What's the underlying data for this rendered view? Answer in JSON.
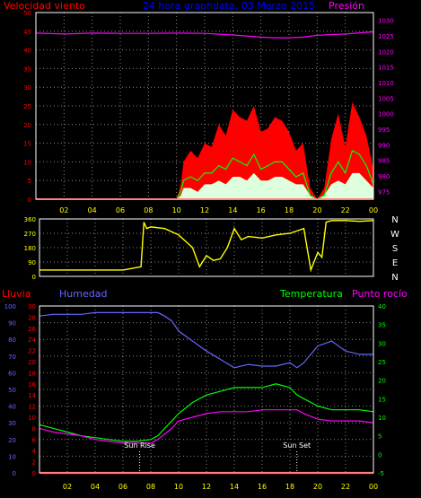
{
  "header": {
    "left_label": "Velocidad viento",
    "center_label": "24 hora graphdata, 03 Marzo 2015",
    "right_label": "Presión"
  },
  "bottom_header": {
    "rain_label": "Lluvia",
    "humidity_label": "Humedad",
    "temp_label": "Temperatura",
    "dew_label": "Punto rocío"
  },
  "colors": {
    "background": "#000000",
    "grid": "#888888",
    "axis_left_top": "#ff0000",
    "axis_right_top": "#ff00ff",
    "wind_gust": "#ff0000",
    "wind_avg": "#00ff00",
    "wind_low": "#ddffdd",
    "wind_dir": "#ffff00",
    "rain": "#ff0000",
    "humidity": "#6666ff",
    "temperature": "#00ff00",
    "dew_point": "#ff00ff",
    "hour_label": "#ffff00",
    "compass_label": "#ffffff"
  },
  "chart_data": [
    {
      "type": "area",
      "title": "24 hora graphdata, 03 Marzo 2015",
      "x_ticks": [
        "02",
        "04",
        "06",
        "08",
        "10",
        "12",
        "14",
        "16",
        "18",
        "20",
        "22",
        "00"
      ],
      "y_left": {
        "label": "Velocidad viento",
        "ticks": [
          0,
          5,
          10,
          15,
          20,
          25,
          30,
          35,
          40,
          45,
          50
        ],
        "ylim": [
          0,
          50
        ]
      },
      "y_right": {
        "label": "Presión",
        "ticks": [
          975,
          980,
          985,
          990,
          995,
          1000,
          1005,
          1010,
          1015,
          1020,
          1025,
          1030
        ],
        "ylim": [
          972.5,
          1032.5
        ]
      },
      "x_hours": [
        0,
        2,
        4,
        6,
        8,
        10,
        10.3,
        10.5,
        11,
        11.5,
        12,
        12.5,
        13,
        13.5,
        14,
        14.5,
        15,
        15.5,
        16,
        16.5,
        17,
        17.5,
        18,
        18.5,
        19,
        19.5,
        20,
        20.5,
        21,
        21.5,
        22,
        22.5,
        23,
        23.5,
        24
      ],
      "series": [
        {
          "name": "Velocidad viento",
          "kind": "gust",
          "values": [
            0,
            0,
            0,
            0,
            0,
            0,
            4,
            10,
            13,
            11,
            15,
            14,
            20,
            17,
            24,
            22,
            21,
            25,
            18,
            19,
            22,
            21,
            18,
            13,
            15,
            3,
            0,
            3,
            16,
            23,
            14,
            26,
            22,
            17,
            8
          ]
        },
        {
          "name": "Velocidad viento",
          "kind": "average",
          "values": [
            0,
            0,
            0,
            0,
            0,
            0,
            2,
            5,
            6,
            5,
            7,
            7,
            9,
            8,
            11,
            10,
            9,
            12,
            8,
            9,
            10,
            10,
            8,
            6,
            7,
            1,
            0,
            1,
            7,
            10,
            7,
            13,
            12,
            9,
            4
          ]
        },
        {
          "name": "Velocidad viento",
          "kind": "low",
          "values": [
            0,
            0,
            0,
            0,
            0,
            0,
            1,
            3,
            3,
            2,
            4,
            4,
            5,
            4,
            6,
            6,
            5,
            7,
            5,
            5,
            6,
            6,
            5,
            4,
            4,
            1,
            0,
            1,
            4,
            5,
            4,
            7,
            7,
            5,
            3
          ]
        },
        {
          "name": "Presión",
          "kind": "pressure",
          "x": [
            0,
            2,
            4,
            6,
            8,
            10,
            12,
            14,
            16,
            17,
            18,
            19,
            20,
            22,
            24
          ],
          "values": [
            1025.9,
            1025.6,
            1025.9,
            1025.8,
            1025.8,
            1025.9,
            1025.8,
            1025.3,
            1024.6,
            1024.4,
            1024.4,
            1024.6,
            1025.2,
            1025.6,
            1026.3
          ]
        }
      ]
    },
    {
      "type": "line",
      "x_ticks": [
        "02",
        "04",
        "06",
        "08",
        "10",
        "12",
        "14",
        "16",
        "18",
        "20",
        "22",
        "00"
      ],
      "y_left": {
        "ticks": [
          0,
          90,
          180,
          270,
          360
        ],
        "ylim": [
          0,
          360
        ]
      },
      "y_right_labels": [
        "N",
        "W",
        "S",
        "E",
        "N"
      ],
      "series": [
        {
          "name": "Dirección viento",
          "x": [
            0,
            2,
            4,
            6,
            7.3,
            7.5,
            7.7,
            8,
            9,
            10,
            11,
            11.5,
            12,
            12.5,
            13,
            13.5,
            14,
            14.5,
            15,
            16,
            17,
            18,
            19,
            19.5,
            20,
            20.3,
            20.6,
            21,
            22,
            23,
            24
          ],
          "values": [
            40,
            40,
            40,
            40,
            60,
            340,
            300,
            310,
            300,
            260,
            180,
            60,
            130,
            100,
            110,
            180,
            300,
            230,
            250,
            240,
            260,
            270,
            300,
            40,
            150,
            120,
            340,
            350,
            350,
            345,
            350
          ]
        }
      ]
    },
    {
      "type": "line",
      "x_ticks": [
        "02",
        "04",
        "06",
        "08",
        "10",
        "12",
        "14",
        "16",
        "18",
        "20",
        "22",
        "00"
      ],
      "y_rain": {
        "label": "Lluvia",
        "ticks": [
          0,
          10,
          20,
          30,
          40,
          50,
          60,
          70,
          80,
          90,
          100
        ],
        "ylim": [
          0,
          100
        ]
      },
      "y_humidity": {
        "label": "Humedad",
        "ticks": [
          0,
          2,
          4,
          6,
          8,
          10,
          12,
          14,
          16,
          18,
          20,
          22,
          24,
          26,
          28,
          30
        ],
        "ylim": [
          0,
          30
        ]
      },
      "y_right": {
        "label": "Temperatura",
        "ticks": [
          -5,
          0,
          5,
          10,
          15,
          20,
          25,
          30,
          35,
          40
        ],
        "ylim": [
          -5,
          40
        ]
      },
      "annotations": [
        {
          "text": "Sun Rise",
          "x": 7.2
        },
        {
          "text": "Sun Set",
          "x": 18.5
        }
      ],
      "x": [
        0,
        1,
        2,
        3,
        4,
        5,
        6,
        7,
        8,
        8.5,
        9,
        9.5,
        10,
        11,
        12,
        13,
        14,
        15,
        16,
        17,
        18,
        18.5,
        19,
        20,
        21,
        22,
        23,
        24
      ],
      "series": [
        {
          "name": "Lluvia",
          "values": [
            0,
            0,
            0,
            0,
            0,
            0,
            0,
            0,
            0,
            0,
            0,
            0,
            0,
            0,
            0,
            0,
            0,
            0,
            0,
            0,
            0,
            0,
            0,
            0,
            0,
            0,
            0,
            0
          ]
        },
        {
          "name": "Humedad",
          "values": [
            94,
            95,
            95,
            95,
            96,
            96,
            96,
            96,
            96,
            96,
            94,
            91,
            85,
            79,
            73,
            68,
            63,
            65,
            64,
            64,
            66,
            63,
            66,
            76,
            79,
            73,
            71,
            71
          ]
        },
        {
          "name": "Temperatura",
          "values": [
            8,
            7,
            6,
            5,
            4.5,
            4,
            3.5,
            3.5,
            4,
            5,
            7,
            9,
            11,
            14,
            16,
            17,
            18,
            18,
            18,
            19,
            18,
            16,
            15,
            13,
            12,
            12,
            12,
            11.5
          ]
        },
        {
          "name": "Punto rocío",
          "values": [
            7,
            6,
            5.5,
            5,
            4,
            3.5,
            3,
            3,
            3,
            4,
            5.5,
            7,
            9,
            10,
            11,
            11.5,
            11.5,
            11.5,
            12,
            12,
            12,
            12,
            11,
            9.5,
            9,
            9,
            9,
            8.5
          ]
        }
      ]
    }
  ]
}
